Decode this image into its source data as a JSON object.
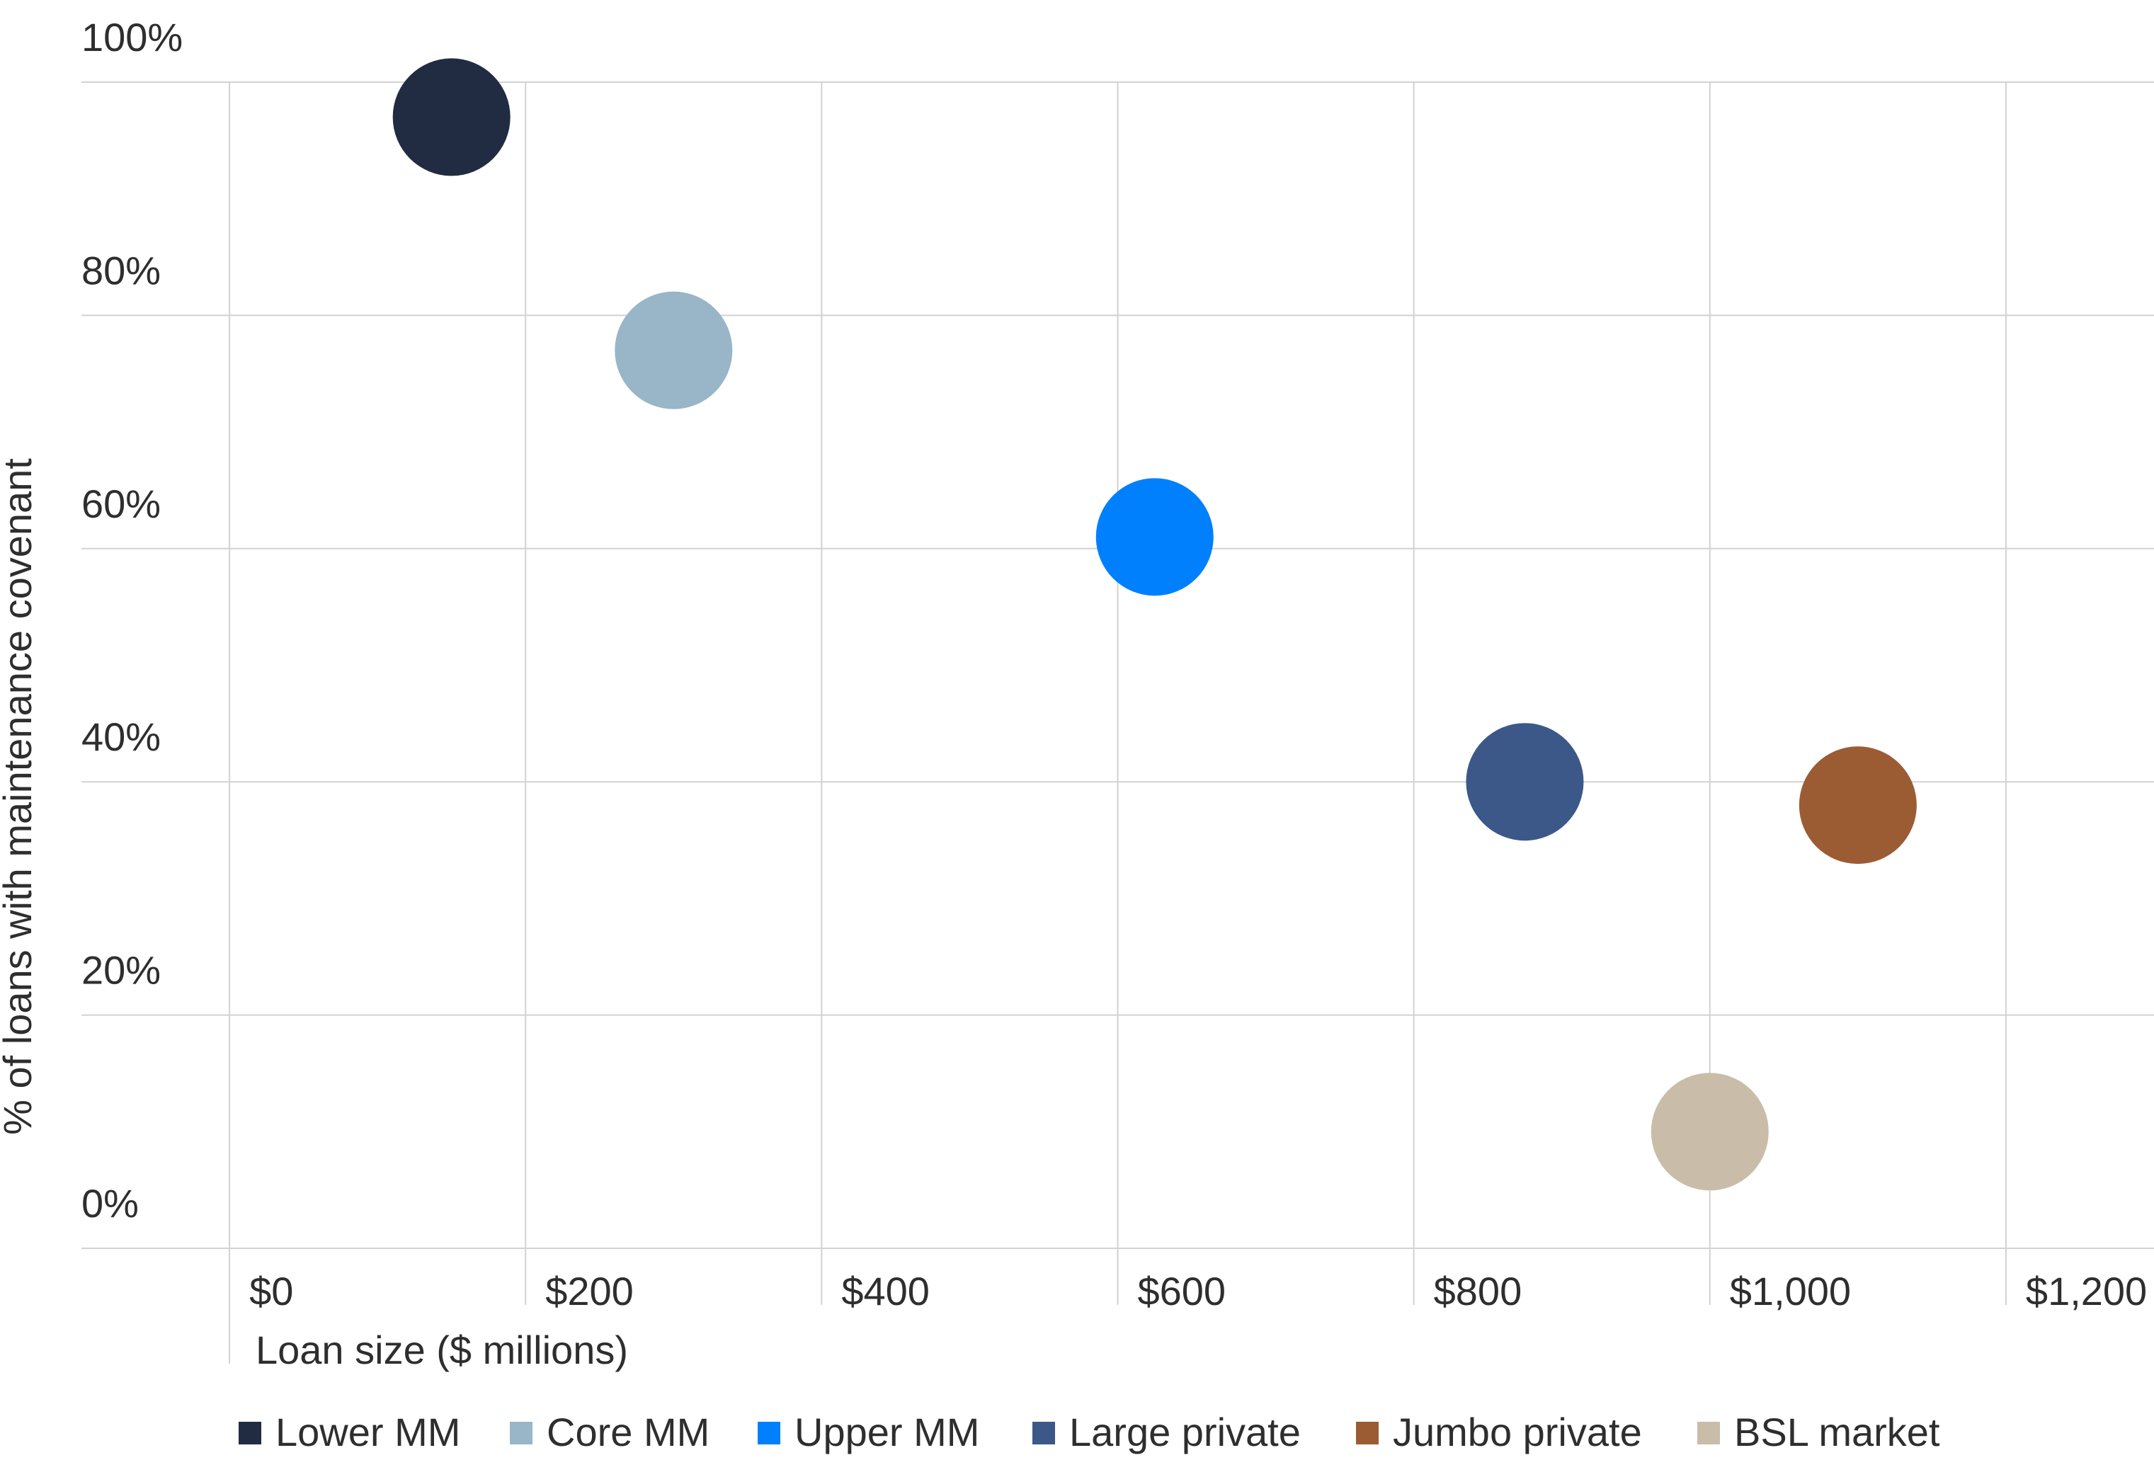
{
  "chart_data": {
    "type": "scatter",
    "xlabel": "Loan size ($ millions)",
    "ylabel": "% of loans with maintenance covenant",
    "xlim": [
      -100,
      1300
    ],
    "ylim": [
      0,
      100
    ],
    "x_ticks": [
      0,
      200,
      400,
      600,
      800,
      1000,
      1200
    ],
    "x_tick_labels": [
      "$0",
      "$200",
      "$400",
      "$600",
      "$800",
      "$1,000",
      "$1,200"
    ],
    "y_ticks": [
      0,
      20,
      40,
      60,
      80,
      100
    ],
    "y_tick_labels": [
      "0%",
      "20%",
      "40%",
      "60%",
      "80%",
      "100%"
    ],
    "grid": true,
    "legend_position": "bottom",
    "series": [
      {
        "name": "Lower MM",
        "x": 150,
        "y": 97,
        "color": "#212c42"
      },
      {
        "name": "Core MM",
        "x": 300,
        "y": 77,
        "color": "#99b5c8"
      },
      {
        "name": "Upper MM",
        "x": 625,
        "y": 61,
        "color": "#0080fc"
      },
      {
        "name": "Large private",
        "x": 875,
        "y": 40,
        "color": "#3b5889"
      },
      {
        "name": "Jumbo private",
        "x": 1100,
        "y": 38,
        "color": "#9b5c34"
      },
      {
        "name": "BSL market",
        "x": 1000,
        "y": 10,
        "color": "#c9bdaa"
      }
    ]
  }
}
